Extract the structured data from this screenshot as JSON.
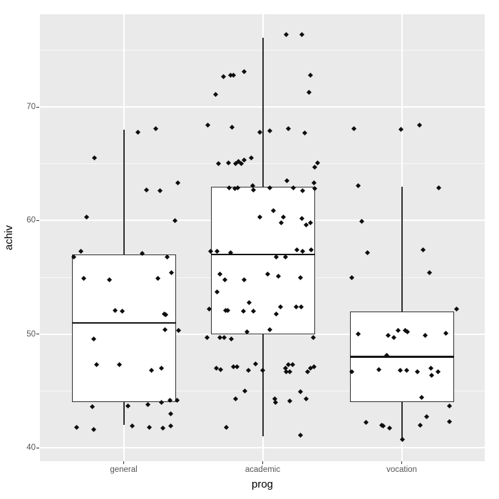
{
  "chart_data": {
    "type": "boxplot",
    "overlay": "jittered_points",
    "title": "",
    "xlabel": "prog",
    "ylabel": "achiv",
    "categories": [
      "general",
      "academic",
      "vocation"
    ],
    "y_ticks": [
      70,
      60,
      50,
      40
    ],
    "y_tick_labels": [
      "70",
      "60",
      "50",
      "40"
    ],
    "y_minor_gridlines": [
      75,
      65,
      55,
      45
    ],
    "ylim": [
      38.6,
      78.3
    ],
    "grid": true,
    "legend": "none",
    "points_format": "[horizontal_jitter_offset_px, achiv_value]",
    "groups": [
      {
        "name": "general",
        "box": {
          "whisker_low": 42,
          "q1": 44,
          "median": 51,
          "q3": 57,
          "whisker_high": 68
        },
        "points": [
          [
            -60,
            57.3
          ],
          [
            -70,
            56.8
          ],
          [
            26,
            57.1
          ],
          [
            61,
            56.8
          ],
          [
            67,
            55.4
          ],
          [
            -56,
            54.9
          ],
          [
            -20,
            54.8
          ],
          [
            48,
            54.9
          ],
          [
            -12,
            52.1
          ],
          [
            -2,
            52.0
          ],
          [
            57,
            51.8
          ],
          [
            59,
            51.7
          ],
          [
            58,
            50.4
          ],
          [
            77,
            50.3
          ],
          [
            -42,
            49.6
          ],
          [
            -52,
            60.3
          ],
          [
            -41,
            65.5
          ],
          [
            20,
            67.8
          ],
          [
            45,
            68.1
          ],
          [
            72,
            60.0
          ],
          [
            76,
            63.3
          ],
          [
            32,
            62.7
          ],
          [
            51,
            62.6
          ],
          [
            -38,
            47.3
          ],
          [
            -6,
            47.3
          ],
          [
            39,
            46.8
          ],
          [
            53,
            47.0
          ],
          [
            65,
            44.2
          ],
          [
            75,
            44.2
          ],
          [
            53,
            44.0
          ],
          [
            -44,
            43.6
          ],
          [
            6,
            43.7
          ],
          [
            34,
            43.8
          ],
          [
            66,
            43.0
          ],
          [
            -66,
            41.8
          ],
          [
            -42,
            41.6
          ],
          [
            12,
            41.9
          ],
          [
            36,
            41.8
          ],
          [
            55,
            41.7
          ],
          [
            66,
            41.9
          ]
        ]
      },
      {
        "name": "academic",
        "box": {
          "whisker_low": 41,
          "q1": 50,
          "median": 57,
          "q3": 63,
          "whisker_high": 76.1
        },
        "points": [
          [
            -55,
            72.7
          ],
          [
            -45,
            72.8
          ],
          [
            -41,
            72.8
          ],
          [
            -26,
            73.1
          ],
          [
            -66,
            71.1
          ],
          [
            33,
            76.4
          ],
          [
            55,
            76.4
          ],
          [
            67,
            72.8
          ],
          [
            65,
            71.3
          ],
          [
            -77,
            68.4
          ],
          [
            -43,
            68.2
          ],
          [
            -4,
            67.8
          ],
          [
            10,
            67.9
          ],
          [
            36,
            68.1
          ],
          [
            59,
            67.7
          ],
          [
            -62,
            65.0
          ],
          [
            -48,
            65.1
          ],
          [
            -38,
            65.0
          ],
          [
            -34,
            65.2
          ],
          [
            -30,
            65.0
          ],
          [
            -26,
            65.3
          ],
          [
            -16,
            65.5
          ],
          [
            77,
            65.1
          ],
          [
            73,
            64.7
          ],
          [
            -47,
            62.9
          ],
          [
            -39,
            62.8
          ],
          [
            -35,
            62.9
          ],
          [
            -14,
            63.1
          ],
          [
            -13,
            62.7
          ],
          [
            10,
            62.9
          ],
          [
            43,
            62.9
          ],
          [
            56,
            62.6
          ],
          [
            73,
            62.8
          ],
          [
            34,
            63.5
          ],
          [
            72,
            63.3
          ],
          [
            -4,
            60.3
          ],
          [
            15,
            60.9
          ],
          [
            29,
            60.3
          ],
          [
            26,
            59.8
          ],
          [
            55,
            60.2
          ],
          [
            61,
            59.6
          ],
          [
            67,
            59.8
          ],
          [
            -73,
            57.3
          ],
          [
            -64,
            57.3
          ],
          [
            -45,
            57.2
          ],
          [
            48,
            57.4
          ],
          [
            56,
            57.3
          ],
          [
            68,
            57.4
          ],
          [
            19,
            56.8
          ],
          [
            32,
            56.8
          ],
          [
            -60,
            55.3
          ],
          [
            7,
            55.3
          ],
          [
            22,
            55.1
          ],
          [
            53,
            55.0
          ],
          [
            -53,
            54.8
          ],
          [
            -26,
            54.8
          ],
          [
            -64,
            53.7
          ],
          [
            -19,
            52.8
          ],
          [
            -75,
            52.2
          ],
          [
            -52,
            52.1
          ],
          [
            -49,
            52.1
          ],
          [
            -27,
            52.0
          ],
          [
            -13,
            52.0
          ],
          [
            19,
            51.8
          ],
          [
            25,
            52.4
          ],
          [
            47,
            52.4
          ],
          [
            54,
            52.4
          ],
          [
            10,
            50.4
          ],
          [
            -22,
            50.2
          ],
          [
            -78,
            49.7
          ],
          [
            -60,
            49.7
          ],
          [
            -54,
            49.7
          ],
          [
            -44,
            49.6
          ],
          [
            71,
            49.7
          ],
          [
            -65,
            47.0
          ],
          [
            -59,
            46.9
          ],
          [
            -41,
            47.1
          ],
          [
            -36,
            47.1
          ],
          [
            -20,
            46.8
          ],
          [
            -10,
            47.4
          ],
          [
            0,
            46.8
          ],
          [
            32,
            47.0
          ],
          [
            33,
            46.7
          ],
          [
            38,
            46.7
          ],
          [
            36,
            47.3
          ],
          [
            42,
            47.3
          ],
          [
            63,
            46.7
          ],
          [
            67,
            47.0
          ],
          [
            72,
            47.1
          ],
          [
            -25,
            45.0
          ],
          [
            53,
            44.9
          ],
          [
            -38,
            44.3
          ],
          [
            17,
            44.3
          ],
          [
            18,
            44.0
          ],
          [
            38,
            44.1
          ],
          [
            61,
            44.3
          ],
          [
            -51,
            41.8
          ],
          [
            53,
            41.1
          ]
        ]
      },
      {
        "name": "vocation",
        "box": {
          "whisker_low": 40.7,
          "q1": 44,
          "median": 48,
          "q3": 52,
          "whisker_high": 63
        },
        "points": [
          [
            -67,
            68.1
          ],
          [
            -1,
            68.0
          ],
          [
            25,
            68.4
          ],
          [
            -61,
            63.1
          ],
          [
            52,
            62.9
          ],
          [
            -56,
            59.9
          ],
          [
            -48,
            57.2
          ],
          [
            30,
            57.4
          ],
          [
            39,
            55.4
          ],
          [
            -70,
            55.0
          ],
          [
            77,
            52.2
          ],
          [
            -61,
            50.0
          ],
          [
            -19,
            49.9
          ],
          [
            -11,
            49.7
          ],
          [
            -5,
            50.3
          ],
          [
            5,
            50.3
          ],
          [
            8,
            50.2
          ],
          [
            33,
            49.9
          ],
          [
            62,
            50.1
          ],
          [
            -21,
            48.1
          ],
          [
            -70,
            46.7
          ],
          [
            -32,
            46.9
          ],
          [
            -2,
            46.8
          ],
          [
            7,
            46.8
          ],
          [
            22,
            46.7
          ],
          [
            41,
            47.0
          ],
          [
            42,
            46.4
          ],
          [
            51,
            46.7
          ],
          [
            28,
            44.4
          ],
          [
            67,
            43.7
          ],
          [
            -50,
            42.2
          ],
          [
            -28,
            42.0
          ],
          [
            -26,
            41.9
          ],
          [
            -17,
            41.7
          ],
          [
            26,
            42.0
          ],
          [
            35,
            42.7
          ],
          [
            67,
            42.3
          ],
          [
            1,
            40.7
          ]
        ]
      }
    ],
    "style": {
      "panel_bg": "#EAEAEA",
      "grid_color": "#FFFFFF",
      "box_fill": "#FFFFFF",
      "box_stroke": "#2F2F2F",
      "point_color": "#0D0D0D",
      "tick_label_color": "#555555",
      "axis_title_color": "#000000",
      "figure_bg": "#FFFFFF"
    }
  }
}
